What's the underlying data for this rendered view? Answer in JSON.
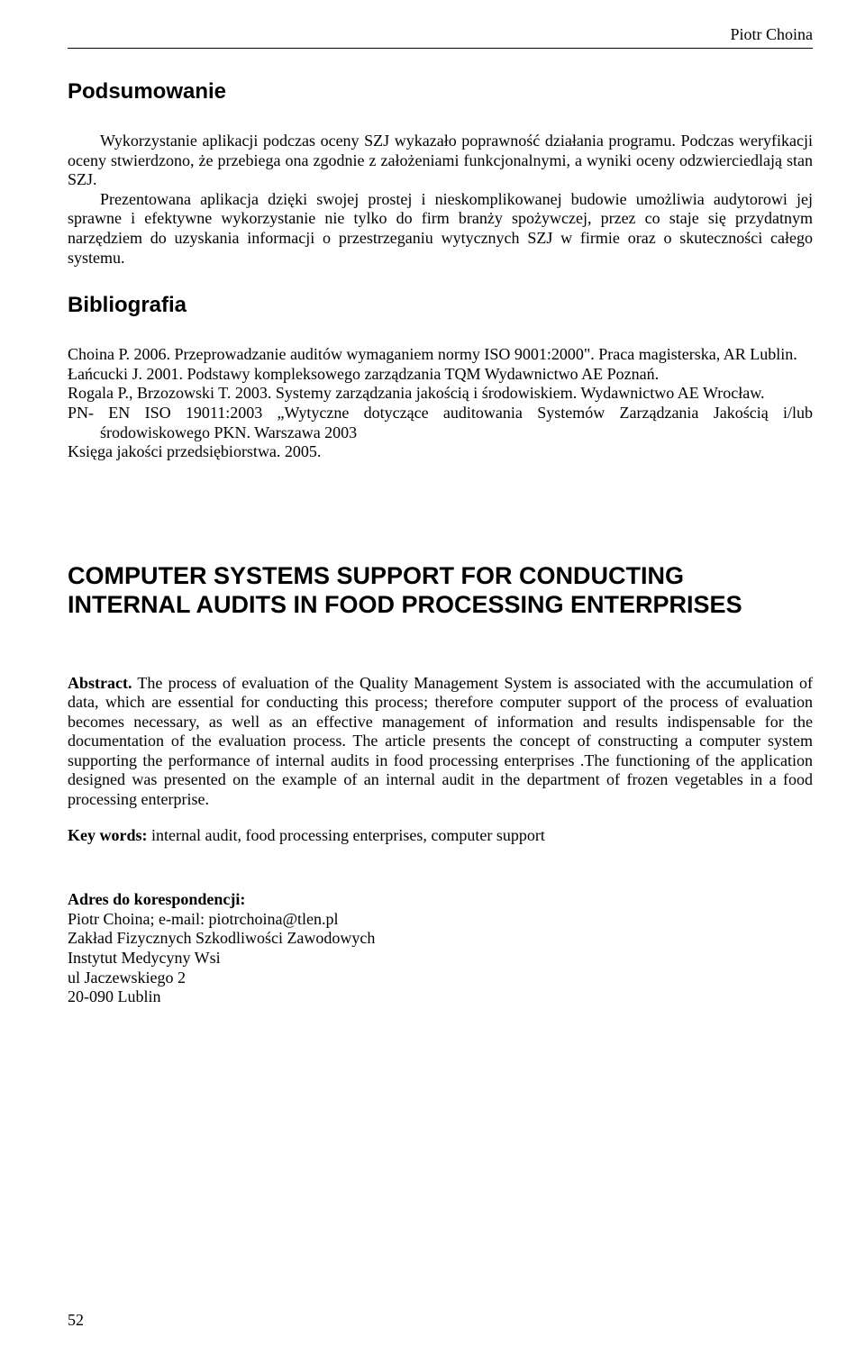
{
  "header": {
    "author": "Piotr Choina"
  },
  "section1": {
    "heading": "Podsumowanie",
    "para1": "Wykorzystanie aplikacji podczas oceny SZJ wykazało poprawność działania programu. Podczas weryfikacji oceny stwierdzono, że przebiega ona zgodnie z założeniami funkcjonalnymi, a wyniki oceny odzwierciedlają stan SZJ.",
    "para2": "Prezentowana aplikacja dzięki swojej prostej i nieskomplikowanej budowie umożliwia audytorowi jej sprawne i efektywne wykorzystanie nie tylko do firm branży spożywczej, przez co staje się przydatnym narzędziem do uzyskania informacji o przestrzeganiu wytycznych SZJ w firmie oraz o skuteczności całego systemu."
  },
  "section2": {
    "heading": "Bibliografia",
    "items": [
      "Choina P. 2006. Przeprowadzanie auditów wymaganiem normy ISO 9001:2000\". Praca magisterska, AR Lublin.",
      "Łańcucki J. 2001. Podstawy kompleksowego zarządzania TQM Wydawnictwo AE Poznań.",
      "Rogala P., Brzozowski T. 2003. Systemy zarządzania jakością i środowiskiem. Wydawnictwo AE Wrocław.",
      "PN- EN ISO 19011:2003 „Wytyczne dotyczące auditowania Systemów Zarządzania Jakością i/lub środowiskowego PKN. Warszawa 2003",
      "Księga jakości przedsiębiorstwa. 2005."
    ]
  },
  "englishTitle": "COMPUTER SYSTEMS SUPPORT FOR CONDUCTING INTERNAL AUDITS IN FOOD PROCESSING ENTERPRISES",
  "abstract": {
    "label": "Abstract.",
    "text": " The process of evaluation of the Quality Management System is associated with the accumulation of data, which are essential for conducting this process; therefore computer support of the process of evaluation becomes necessary, as well as an effective management of information and results indispensable for the documentation of the evaluation process. The article presents the concept of constructing a computer system supporting the performance of internal audits in food processing enterprises .The functioning of the application designed was presented on the example of an internal audit in the department of frozen vegetables in a food processing enterprise."
  },
  "keywords": {
    "label": "Key words:",
    "text": " internal audit, food processing enterprises, computer support"
  },
  "correspondence": {
    "label": "Adres do korespondencji:",
    "lines": [
      "Piotr Choina; e-mail: piotrchoina@tlen.pl",
      "Zakład Fizycznych Szkodliwości Zawodowych",
      "Instytut Medycyny Wsi",
      "ul Jaczewskiego 2",
      "20-090 Lublin"
    ]
  },
  "pageNumber": "52"
}
